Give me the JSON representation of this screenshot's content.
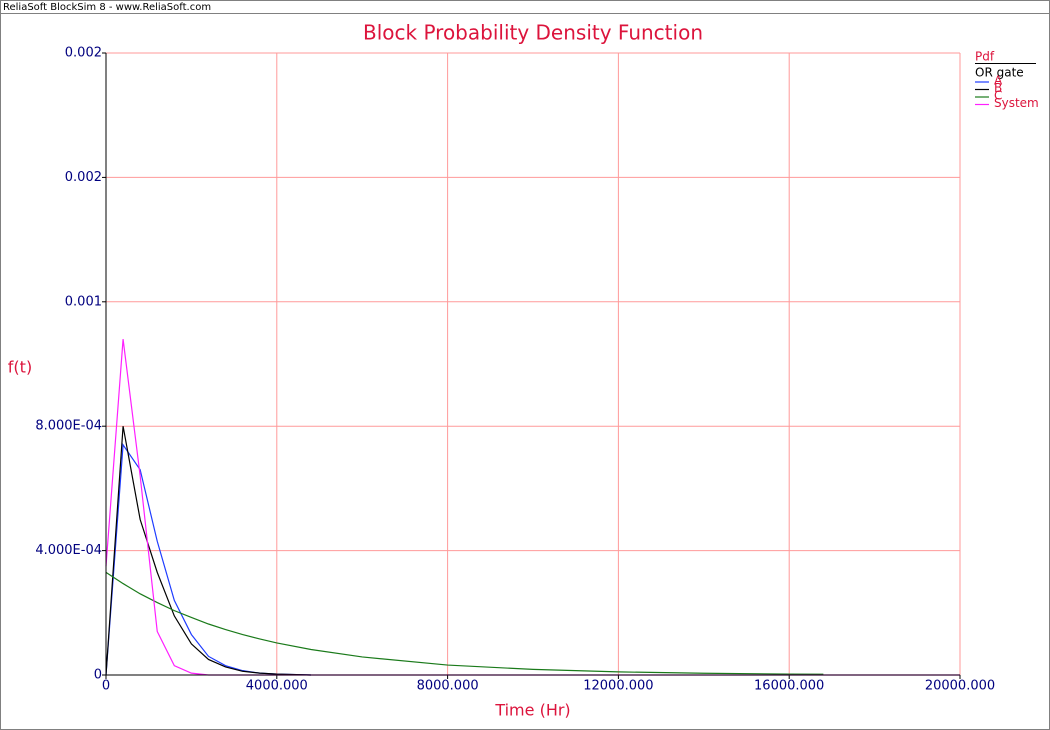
{
  "window_title": "ReliaSoft BlockSim 8 - www.ReliaSoft.com",
  "chart_data": {
    "type": "line",
    "title": "Block Probability Density Function",
    "x_label": "Time (Hr)",
    "y_label": "f(t)",
    "legend_title": "Pdf",
    "legend_subtitle": "OR gate",
    "legend": "top-right",
    "grid": true,
    "x": [
      0,
      400,
      800,
      1200,
      1600,
      2000,
      2400,
      2800,
      3200,
      3600,
      4000,
      4800,
      6000,
      8000,
      10000,
      12000,
      14000,
      16000,
      16800,
      20000
    ],
    "series": [
      {
        "name": "A",
        "color": "#1e3cff",
        "values": [
          0,
          0.00074,
          0.00066,
          0.00043,
          0.00024,
          0.00013,
          6e-05,
          3e-05,
          1.4e-05,
          6e-06,
          3e-06,
          0,
          null,
          null,
          null,
          null,
          null,
          null,
          null,
          null
        ]
      },
      {
        "name": "B",
        "color": "#000000",
        "values": [
          0,
          0.0008,
          0.0005,
          0.00033,
          0.00019,
          0.0001,
          5e-05,
          2.6e-05,
          1.2e-05,
          6e-06,
          3e-06,
          0,
          null,
          null,
          null,
          null,
          null,
          null,
          null,
          null
        ]
      },
      {
        "name": "C",
        "color": "#1a7a1a",
        "values": [
          0.00033,
          0.000294,
          0.000261,
          0.000233,
          0.000207,
          0.000185,
          0.000164,
          0.000146,
          0.00013,
          0.000116,
          0.000103,
          8.2e-05,
          5.8e-05,
          3.2e-05,
          1.8e-05,
          1e-05,
          5.7e-06,
          3e-06,
          2.5e-06,
          null
        ]
      },
      {
        "name": "System",
        "color": "#ff20ff",
        "values": [
          0.00035,
          0.00108,
          0.00064,
          0.00014,
          3e-05,
          6e-06,
          0,
          0,
          0,
          0,
          0,
          0,
          0,
          0,
          0,
          0,
          0,
          0,
          0,
          0
        ]
      }
    ],
    "xlim": [
      0,
      20000
    ],
    "xticks": [
      0,
      {
        "value": 4000,
        "label": "4000.000"
      },
      {
        "value": 8000,
        "label": "8000.000"
      },
      {
        "value": 12000,
        "label": "12000.000"
      },
      {
        "value": 16000,
        "label": "16000.000"
      },
      {
        "value": 20000,
        "label": "20000.000"
      }
    ],
    "ylim": [
      0,
      0.002
    ],
    "yticks": [
      0,
      {
        "value": 0.0004,
        "label": "4.000E-04"
      },
      {
        "value": 0.0008,
        "label": "8.000E-04"
      },
      {
        "value": 0.0012,
        "label": "0.001"
      },
      {
        "value": 0.0016,
        "label": "0.002"
      },
      0.002
    ]
  }
}
